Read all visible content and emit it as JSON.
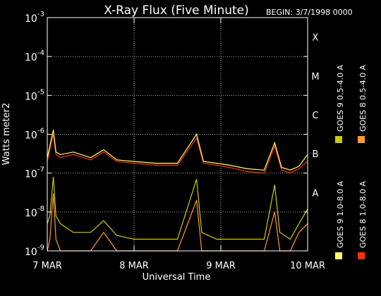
{
  "chart_data": {
    "type": "line",
    "title": "X-Ray Flux (Five Minute)",
    "begin_label": "BEGIN: 3/7/1998 0000",
    "xlabel": "Universal Time",
    "ylabel": "Watts meter2",
    "x_ticks": [
      "7 MAR",
      "8 MAR",
      "9 MAR",
      "10 MAR"
    ],
    "x_range_days": [
      0,
      3
    ],
    "y_scale": "log",
    "ylim": [
      1e-09,
      0.001
    ],
    "y_ticks": [
      {
        "base": "10",
        "exp": "-3",
        "value": 0.001
      },
      {
        "base": "10",
        "exp": "-4",
        "value": 0.0001
      },
      {
        "base": "10",
        "exp": "-5",
        "value": 1e-05
      },
      {
        "base": "10",
        "exp": "-6",
        "value": 1e-06
      },
      {
        "base": "10",
        "exp": "-7",
        "value": 1e-07
      },
      {
        "base": "10",
        "exp": "-8",
        "value": 1e-08
      },
      {
        "base": "10",
        "exp": "-9",
        "value": 1e-09
      }
    ],
    "flare_classes": [
      {
        "label": "X",
        "value": 0.0001
      },
      {
        "label": "M",
        "value": 1e-05
      },
      {
        "label": "C",
        "value": 1e-06
      },
      {
        "label": "B",
        "value": 1e-07
      },
      {
        "label": "A",
        "value": 1e-08
      }
    ],
    "grid": true,
    "legend_position": "right",
    "series": [
      {
        "name": "GOES 8 1.0-8.0 A",
        "color": "#ff3300",
        "x": [
          0,
          0.07,
          0.1,
          0.15,
          0.3,
          0.5,
          0.65,
          0.8,
          1.0,
          1.25,
          1.5,
          1.72,
          1.8,
          1.95,
          2.1,
          2.3,
          2.5,
          2.62,
          2.7,
          2.8,
          2.9,
          3.0
        ],
        "y": [
          2e-07,
          1e-06,
          3e-07,
          2.5e-07,
          3e-07,
          2.2e-07,
          3.5e-07,
          2e-07,
          1.8e-07,
          1.6e-07,
          1.6e-07,
          8e-07,
          1.8e-07,
          1.6e-07,
          1.4e-07,
          1.1e-07,
          1e-07,
          5e-07,
          1.2e-07,
          1e-07,
          1.3e-07,
          2e-07
        ]
      },
      {
        "name": "GOES 8 0.5-4.0 A",
        "color": "#ff9933",
        "x": [
          0,
          0.03,
          0.07,
          0.1,
          0.15,
          0.3,
          0.5,
          0.65,
          0.8,
          1.0,
          1.25,
          1.5,
          1.72,
          1.78,
          1.95,
          2.1,
          2.3,
          2.5,
          2.62,
          2.68,
          2.8,
          2.9,
          3.0
        ],
        "y": [
          1e-09,
          2e-09,
          3e-08,
          2e-09,
          1e-09,
          1e-09,
          1e-09,
          3e-09,
          1e-09,
          1e-09,
          1e-09,
          1e-09,
          2e-08,
          1e-09,
          1e-09,
          1e-09,
          1e-09,
          1e-09,
          1e-08,
          1e-09,
          1e-09,
          3e-09,
          5e-09
        ]
      },
      {
        "name": "GOES 9 1.0-8.0 A",
        "color": "#ffff66",
        "x": [
          0,
          0.07,
          0.1,
          0.15,
          0.3,
          0.5,
          0.65,
          0.8,
          1.0,
          1.25,
          1.5,
          1.72,
          1.8,
          1.95,
          2.1,
          2.3,
          2.5,
          2.62,
          2.7,
          2.8,
          2.9,
          3.0
        ],
        "y": [
          2.5e-07,
          1.3e-06,
          3.5e-07,
          3e-07,
          3.5e-07,
          2.5e-07,
          4e-07,
          2.2e-07,
          2e-07,
          1.8e-07,
          1.8e-07,
          1e-06,
          2e-07,
          1.8e-07,
          1.6e-07,
          1.3e-07,
          1.2e-07,
          6e-07,
          1.4e-07,
          1.2e-07,
          1.5e-07,
          3e-07
        ]
      },
      {
        "name": "GOES 9 0.5-4.0 A",
        "color": "#cccc00",
        "x": [
          0,
          0.03,
          0.07,
          0.1,
          0.15,
          0.3,
          0.5,
          0.65,
          0.8,
          1.0,
          1.25,
          1.5,
          1.72,
          1.78,
          1.95,
          2.1,
          2.3,
          2.5,
          2.62,
          2.68,
          2.8,
          2.9,
          3.0
        ],
        "y": [
          5e-09,
          8e-09,
          8e-08,
          8e-09,
          5e-09,
          3e-09,
          3e-09,
          6e-09,
          2.5e-09,
          2e-09,
          2e-09,
          2e-09,
          7e-08,
          3e-09,
          2e-09,
          2e-09,
          2e-09,
          2e-09,
          5e-08,
          3e-09,
          2e-09,
          5e-09,
          1.2e-08
        ]
      }
    ]
  }
}
